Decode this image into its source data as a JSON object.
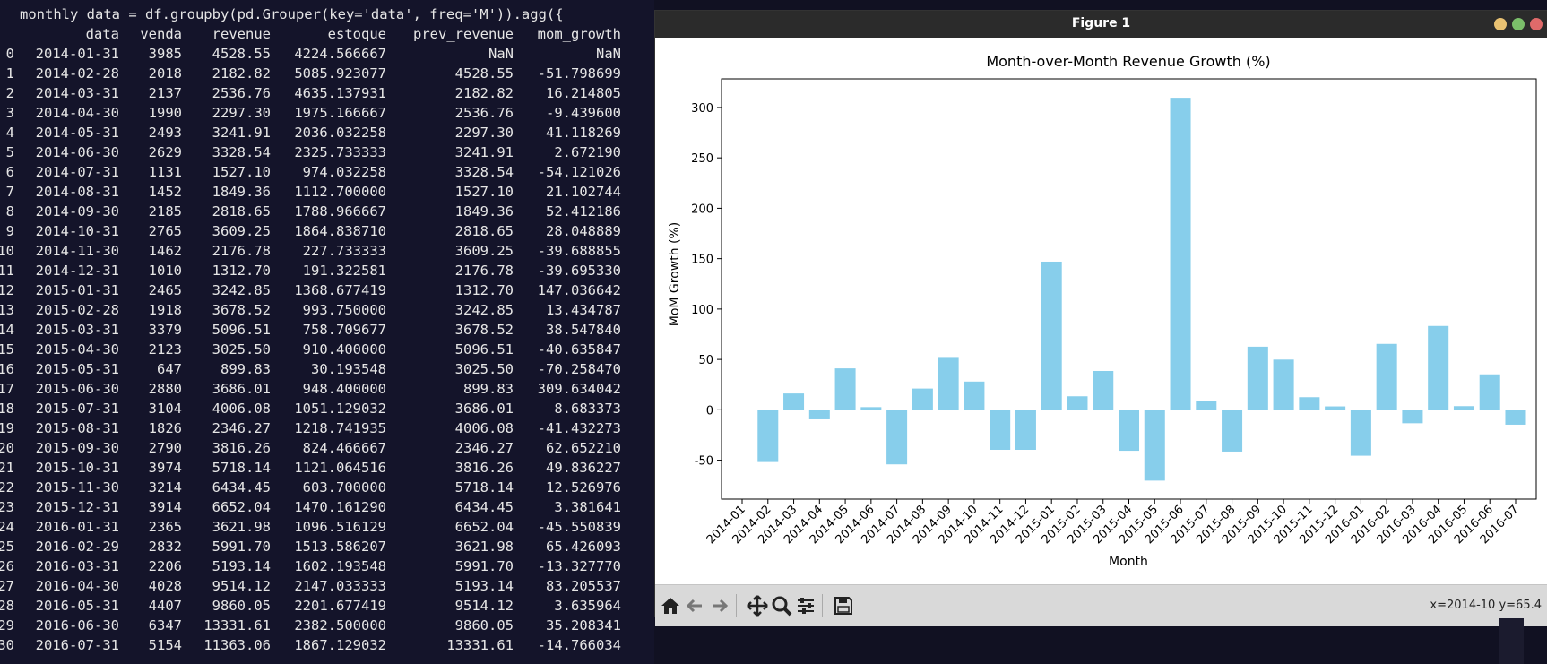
{
  "terminal": {
    "command": "monthly_data = df.groupby(pd.Grouper(key='data', freq='M')).agg({",
    "headers": [
      "data",
      "venda",
      "revenue",
      "estoque",
      "prev_revenue",
      "mom_growth"
    ],
    "rows": [
      [
        "0",
        "2014-01-31",
        "3985",
        "4528.55",
        "4224.566667",
        "NaN",
        "NaN"
      ],
      [
        "1",
        "2014-02-28",
        "2018",
        "2182.82",
        "5085.923077",
        "4528.55",
        "-51.798699"
      ],
      [
        "2",
        "2014-03-31",
        "2137",
        "2536.76",
        "4635.137931",
        "2182.82",
        "16.214805"
      ],
      [
        "3",
        "2014-04-30",
        "1990",
        "2297.30",
        "1975.166667",
        "2536.76",
        "-9.439600"
      ],
      [
        "4",
        "2014-05-31",
        "2493",
        "3241.91",
        "2036.032258",
        "2297.30",
        "41.118269"
      ],
      [
        "5",
        "2014-06-30",
        "2629",
        "3328.54",
        "2325.733333",
        "3241.91",
        "2.672190"
      ],
      [
        "6",
        "2014-07-31",
        "1131",
        "1527.10",
        "974.032258",
        "3328.54",
        "-54.121026"
      ],
      [
        "7",
        "2014-08-31",
        "1452",
        "1849.36",
        "1112.700000",
        "1527.10",
        "21.102744"
      ],
      [
        "8",
        "2014-09-30",
        "2185",
        "2818.65",
        "1788.966667",
        "1849.36",
        "52.412186"
      ],
      [
        "9",
        "2014-10-31",
        "2765",
        "3609.25",
        "1864.838710",
        "2818.65",
        "28.048889"
      ],
      [
        "10",
        "2014-11-30",
        "1462",
        "2176.78",
        "227.733333",
        "3609.25",
        "-39.688855"
      ],
      [
        "11",
        "2014-12-31",
        "1010",
        "1312.70",
        "191.322581",
        "2176.78",
        "-39.695330"
      ],
      [
        "12",
        "2015-01-31",
        "2465",
        "3242.85",
        "1368.677419",
        "1312.70",
        "147.036642"
      ],
      [
        "13",
        "2015-02-28",
        "1918",
        "3678.52",
        "993.750000",
        "3242.85",
        "13.434787"
      ],
      [
        "14",
        "2015-03-31",
        "3379",
        "5096.51",
        "758.709677",
        "3678.52",
        "38.547840"
      ],
      [
        "15",
        "2015-04-30",
        "2123",
        "3025.50",
        "910.400000",
        "5096.51",
        "-40.635847"
      ],
      [
        "16",
        "2015-05-31",
        "647",
        "899.83",
        "30.193548",
        "3025.50",
        "-70.258470"
      ],
      [
        "17",
        "2015-06-30",
        "2880",
        "3686.01",
        "948.400000",
        "899.83",
        "309.634042"
      ],
      [
        "18",
        "2015-07-31",
        "3104",
        "4006.08",
        "1051.129032",
        "3686.01",
        "8.683373"
      ],
      [
        "19",
        "2015-08-31",
        "1826",
        "2346.27",
        "1218.741935",
        "4006.08",
        "-41.432273"
      ],
      [
        "20",
        "2015-09-30",
        "2790",
        "3816.26",
        "824.466667",
        "2346.27",
        "62.652210"
      ],
      [
        "21",
        "2015-10-31",
        "3974",
        "5718.14",
        "1121.064516",
        "3816.26",
        "49.836227"
      ],
      [
        "22",
        "2015-11-30",
        "3214",
        "6434.45",
        "603.700000",
        "5718.14",
        "12.526976"
      ],
      [
        "23",
        "2015-12-31",
        "3914",
        "6652.04",
        "1470.161290",
        "6434.45",
        "3.381641"
      ],
      [
        "24",
        "2016-01-31",
        "2365",
        "3621.98",
        "1096.516129",
        "6652.04",
        "-45.550839"
      ],
      [
        "25",
        "2016-02-29",
        "2832",
        "5991.70",
        "1513.586207",
        "3621.98",
        "65.426093"
      ],
      [
        "26",
        "2016-03-31",
        "2206",
        "5193.14",
        "1602.193548",
        "5991.70",
        "-13.327770"
      ],
      [
        "27",
        "2016-04-30",
        "4028",
        "9514.12",
        "2147.033333",
        "5193.14",
        "83.205537"
      ],
      [
        "28",
        "2016-05-31",
        "4407",
        "9860.05",
        "2201.677419",
        "9514.12",
        "3.635964"
      ],
      [
        "29",
        "2016-06-30",
        "6347",
        "13331.61",
        "2382.500000",
        "9860.05",
        "35.208341"
      ],
      [
        "30",
        "2016-07-31",
        "5154",
        "11363.06",
        "1867.129032",
        "13331.61",
        "-14.766034"
      ]
    ]
  },
  "window": {
    "title": "Figure 1",
    "buttons": [
      "minimize",
      "maximize",
      "close"
    ],
    "button_colors": [
      "#e8c172",
      "#7bbf6a",
      "#e06a6a"
    ]
  },
  "toolbar": {
    "icons": [
      "home-icon",
      "back-arrow-icon",
      "forward-arrow-icon",
      "pan-move-icon",
      "zoom-magnifier-icon",
      "configure-sliders-icon",
      "save-disk-icon"
    ],
    "coords": "x=2014-10 y=65.4"
  },
  "chart_data": {
    "type": "bar",
    "title": "Month-over-Month Revenue Growth (%)",
    "xlabel": "Month",
    "ylabel": "MoM Growth (%)",
    "categories": [
      "2014-01",
      "2014-02",
      "2014-03",
      "2014-04",
      "2014-05",
      "2014-06",
      "2014-07",
      "2014-08",
      "2014-09",
      "2014-10",
      "2014-11",
      "2014-12",
      "2015-01",
      "2015-02",
      "2015-03",
      "2015-04",
      "2015-05",
      "2015-06",
      "2015-07",
      "2015-08",
      "2015-09",
      "2015-10",
      "2015-11",
      "2015-12",
      "2016-01",
      "2016-02",
      "2016-03",
      "2016-04",
      "2016-05",
      "2016-06",
      "2016-07"
    ],
    "values": [
      null,
      -51.798699,
      16.214805,
      -9.4396,
      41.118269,
      2.67219,
      -54.121026,
      21.102744,
      52.412186,
      28.048889,
      -39.688855,
      -39.69533,
      147.036642,
      13.434787,
      38.54784,
      -40.635847,
      -70.25847,
      309.634042,
      8.683373,
      -41.432273,
      62.65221,
      49.836227,
      12.526976,
      3.381641,
      -45.550839,
      65.426093,
      -13.32777,
      83.205537,
      3.635964,
      35.208341,
      -14.766034
    ],
    "yticks": [
      -50,
      0,
      50,
      100,
      150,
      200,
      250,
      300
    ],
    "ylim": [
      -88.6,
      328.4
    ],
    "bar_color": "#87ceeb",
    "grid": false,
    "legend": "none"
  }
}
